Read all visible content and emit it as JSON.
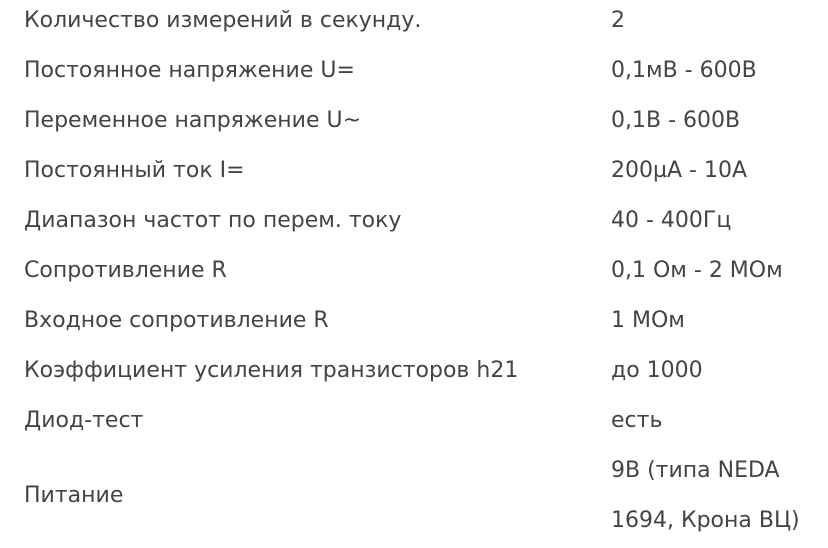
{
  "specs": [
    {
      "label": "Количество измерений в секунду.",
      "value": "2"
    },
    {
      "label": "Постоянное напряжение U=",
      "value": "0,1мВ - 600В"
    },
    {
      "label": "Переменное напряжение U~",
      "value": "0,1В - 600В"
    },
    {
      "label": "Постоянный ток I=",
      "value": "200µА - 10А"
    },
    {
      "label": "Диапазон частот по перем. току",
      "value": "40 - 400Гц"
    },
    {
      "label": "Сопротивление R",
      "value": "0,1 Ом - 2 МОм"
    },
    {
      "label": "Входное сопротивление R",
      "value": "1 МОм"
    },
    {
      "label": "Коэффициент усиления транзисторов h21",
      "value": "до 1000"
    },
    {
      "label": "Диод-тест",
      "value": "есть"
    },
    {
      "label": "Питание",
      "value": "9В (типа NEDA 1694, Крона ВЦ)"
    }
  ]
}
